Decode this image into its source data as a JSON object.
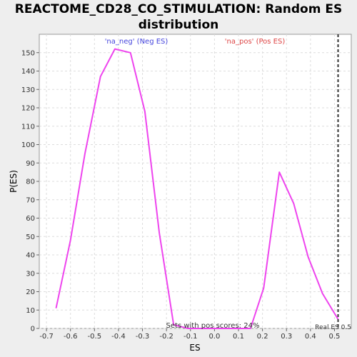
{
  "chart_data": {
    "type": "line",
    "title": "REACTOME_CD28_CO_STIMULATION: Random ES distribution",
    "xlabel": "ES",
    "ylabel": "P(ES)",
    "xlim": [
      -0.73,
      0.57
    ],
    "ylim": [
      0,
      160
    ],
    "x_ticks": [
      "-0.7",
      "-0.6",
      "-0.5",
      "-0.4",
      "-0.3",
      "-0.2",
      "-0.1",
      "0.0",
      "0.1",
      "0.2",
      "0.3",
      "0.4",
      "0.5"
    ],
    "y_ticks": [
      "0",
      "10",
      "20",
      "30",
      "40",
      "50",
      "60",
      "70",
      "80",
      "90",
      "100",
      "110",
      "120",
      "130",
      "140",
      "150"
    ],
    "grid": true,
    "series": [
      {
        "name": "",
        "color": "#ee44ee",
        "x": [
          -0.66,
          -0.6,
          -0.54,
          -0.475,
          -0.415,
          -0.35,
          -0.29,
          -0.23,
          -0.17,
          -0.11,
          0.15,
          0.205,
          0.27,
          0.33,
          0.39,
          0.45,
          0.515
        ],
        "y": [
          11,
          48,
          95,
          137,
          152,
          150,
          118,
          52,
          2,
          0,
          0,
          22,
          85,
          68,
          39,
          19,
          5
        ]
      }
    ],
    "annotations": {
      "neg_label": "'na_neg' (Neg ES)",
      "pos_label": "'na_pos' (Pos ES)",
      "pos_scores": "Sets with pos scores: 24%",
      "real_es": "Real ES 0.5",
      "neg_color": "#4444dd",
      "pos_color": "#dd4444",
      "real_es_value": 0.515
    }
  }
}
